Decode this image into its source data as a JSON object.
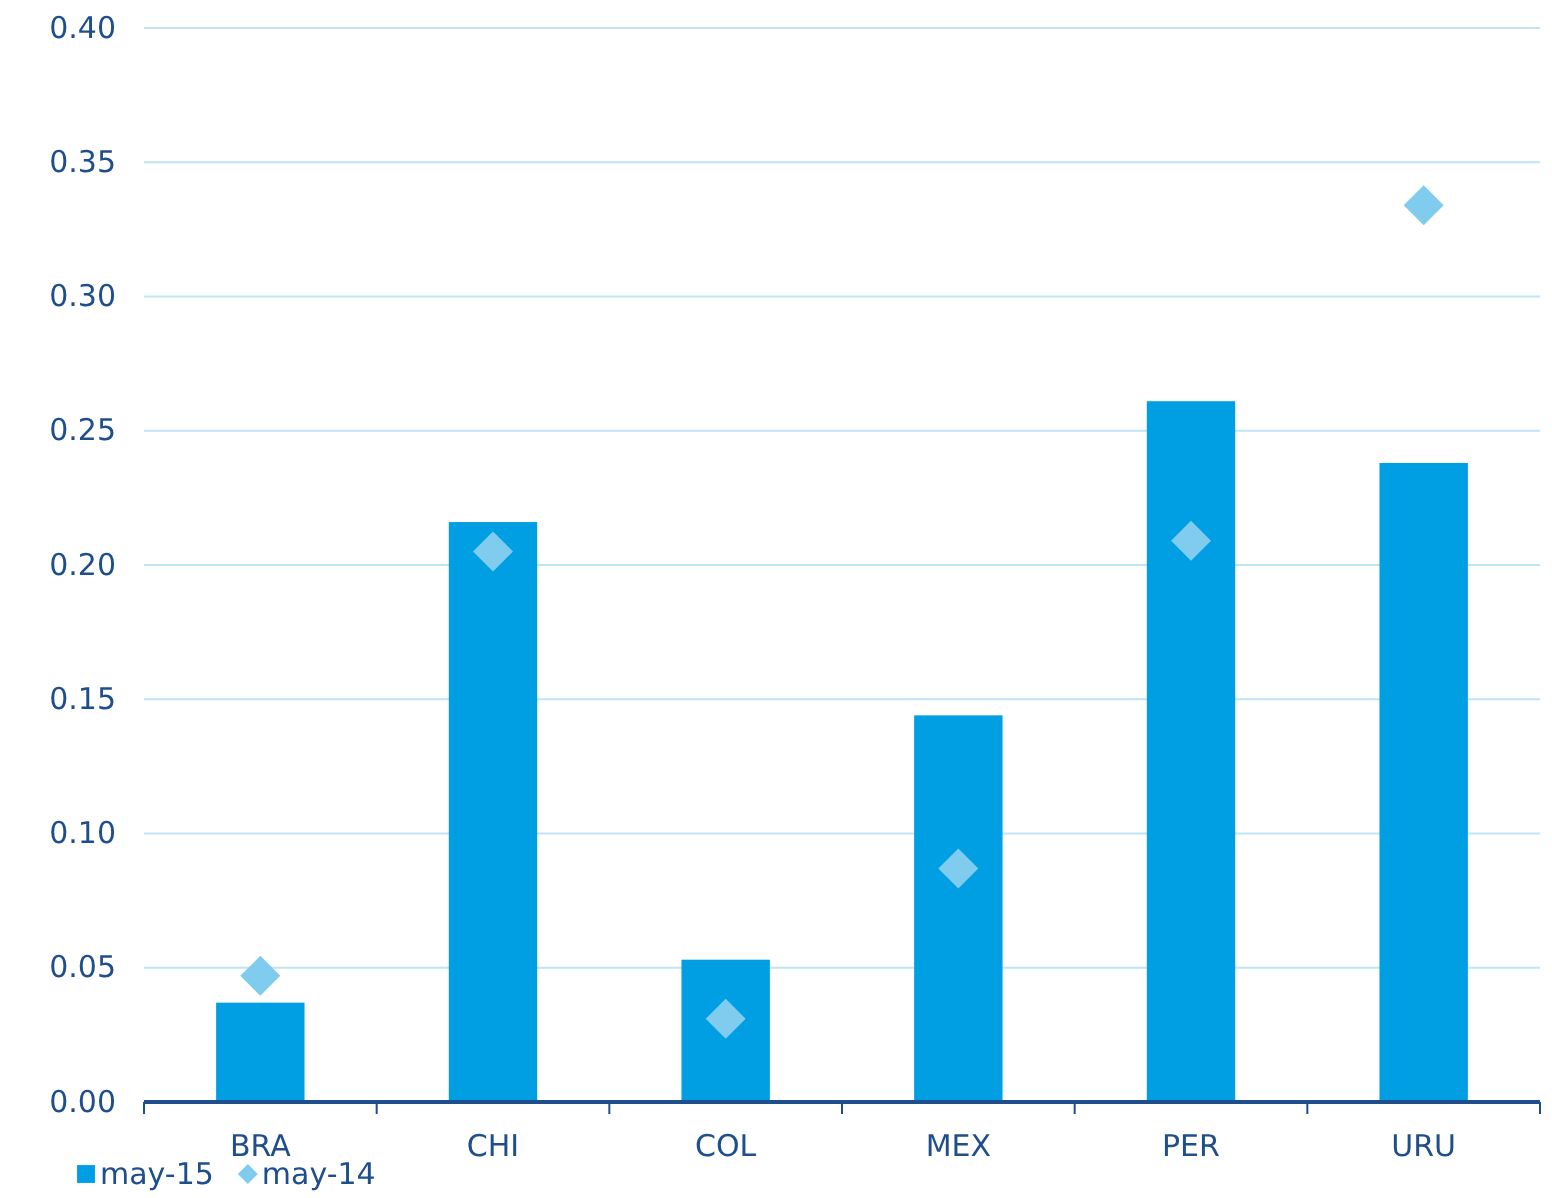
{
  "chart_data": {
    "type": "bar",
    "categories": [
      "BRA",
      "CHI",
      "COL",
      "MEX",
      "PER",
      "URU"
    ],
    "series": [
      {
        "name": "may-15",
        "type": "bar",
        "color": "#009fe3",
        "values": [
          0.037,
          0.216,
          0.053,
          0.144,
          0.261,
          0.238
        ]
      },
      {
        "name": "may-14",
        "type": "scatter",
        "marker": "diamond",
        "color": "#80ccee",
        "x": [
          "BRA",
          "CHI",
          "COL",
          "MEX",
          "PER",
          "URU"
        ],
        "values": [
          0.047,
          0.205,
          0.031,
          0.087,
          0.209,
          0.334
        ]
      }
    ],
    "ylim": [
      0,
      0.4
    ],
    "yticks": [
      {
        "value": 0,
        "label": "0.00"
      },
      {
        "value": 0.05,
        "label": "0.05"
      },
      {
        "value": 0.1,
        "label": "0.10"
      },
      {
        "value": 0.15,
        "label": "0.15"
      },
      {
        "value": 0.2,
        "label": "0.20"
      },
      {
        "value": 0.25,
        "label": "0.25"
      },
      {
        "value": 0.3,
        "label": "0.30"
      },
      {
        "value": 0.35,
        "label": "0.35"
      },
      {
        "value": 0.4,
        "label": "0.40"
      }
    ],
    "grid": "y",
    "legend": "bottom left"
  }
}
